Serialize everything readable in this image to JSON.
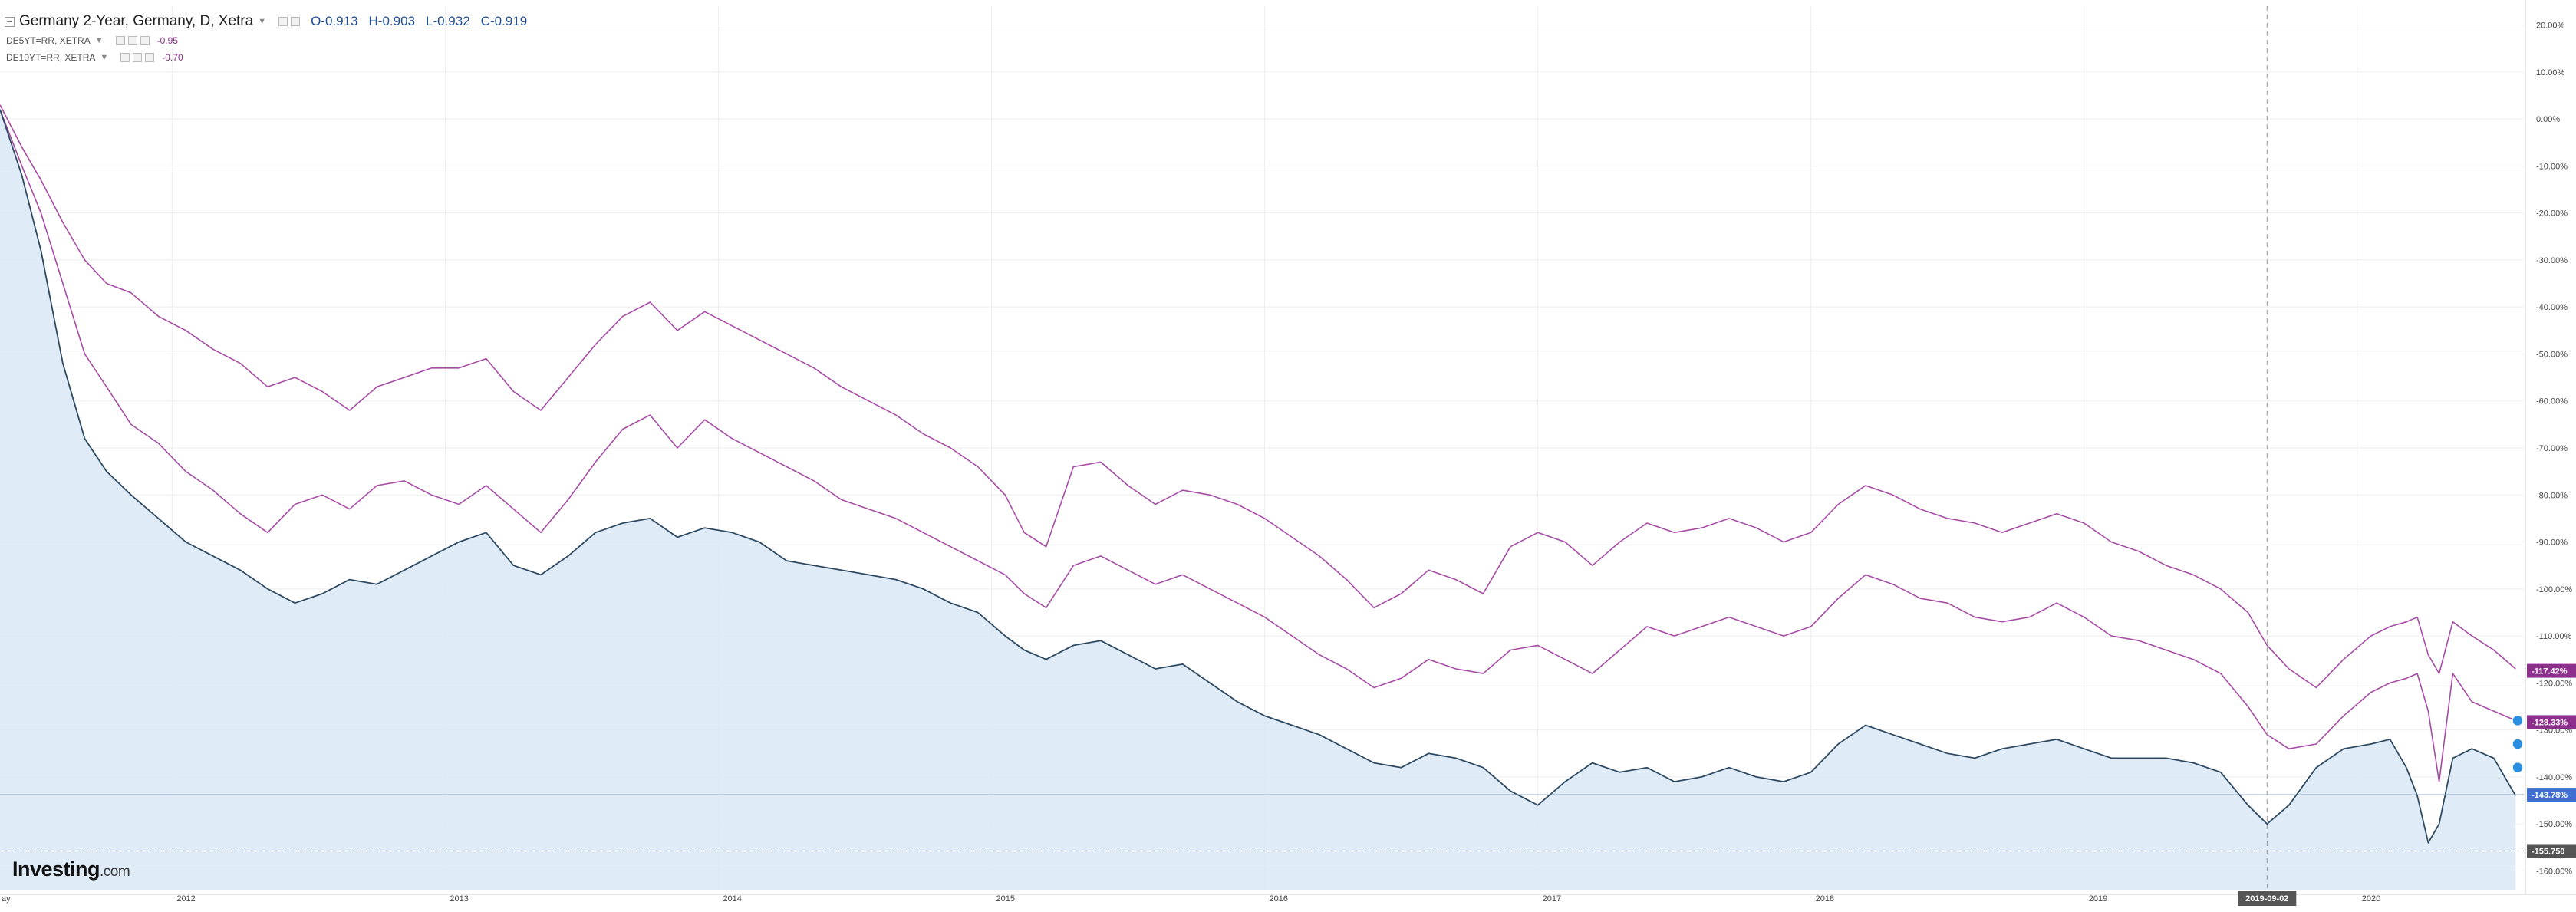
{
  "legend": {
    "main": {
      "title": "Germany 2-Year, Germany, D, Xetra",
      "open": "O-0.913",
      "high": "H-0.903",
      "low": "L-0.932",
      "close": "C-0.919"
    },
    "studies": [
      {
        "label": "DE5YT=RR, XETRA",
        "value": "-0.95"
      },
      {
        "label": "DE10YT=RR, XETRA",
        "value": "-0.70"
      }
    ]
  },
  "branding": {
    "name": "Investing",
    "suffix": ".com"
  },
  "colors": {
    "main_line": "#2e4a62",
    "main_fill": "#dbe8f7",
    "compare_line": "#a64ca6",
    "compare_badge": "#8e2f8e",
    "last_badge": "#3d6ed0",
    "crosshair_badge": "#555555",
    "grid": "#eeeeee"
  },
  "chart_data": {
    "type": "line",
    "title": "Germany 2-Year, Germany, D, Xetra",
    "x_tick_labels": [
      "ay",
      "2012",
      "2013",
      "2014",
      "2015",
      "2016",
      "2017",
      "2018",
      "2019",
      "2020"
    ],
    "y_tick_labels": [
      "20.00%",
      "10.00%",
      "0.00%",
      "-10.00%",
      "-20.00%",
      "-30.00%",
      "-40.00%",
      "-50.00%",
      "-60.00%",
      "-70.00%",
      "-80.00%",
      "-90.00%",
      "-100.00%",
      "-110.00%",
      "-120.00%",
      "-130.00%",
      "-140.00%",
      "-150.00%",
      "-160.00%"
    ],
    "y_ticks": [
      20,
      10,
      0,
      -10,
      -20,
      -30,
      -40,
      -50,
      -60,
      -70,
      -80,
      -90,
      -100,
      -110,
      -120,
      -130,
      -140,
      -150,
      -160
    ],
    "ylim": [
      -164,
      24
    ],
    "xlim": [
      2011.37,
      2020.61
    ],
    "axis_scale": "percent change",
    "grid": true,
    "legend_position": "top-left",
    "crosshair": {
      "x_label": "2019-09-02",
      "x": 2019.67,
      "y_label": "-155.750",
      "y": -155.75
    },
    "value_badges": [
      {
        "text": "-117.42%",
        "value": -117.42,
        "series": "DE10YT=RR"
      },
      {
        "text": "-128.33%",
        "value": -128.33,
        "series": "DE5YT=RR"
      },
      {
        "text": "-143.78%",
        "value": -143.78,
        "series": "Germany 2-Year"
      }
    ],
    "series": [
      {
        "name": "DE10YT=RR, XETRA",
        "role": "compare",
        "x": [
          2011.37,
          2011.45,
          2011.52,
          2011.6,
          2011.68,
          2011.76,
          2011.85,
          2011.95,
          2012.05,
          2012.15,
          2012.25,
          2012.35,
          2012.45,
          2012.55,
          2012.65,
          2012.75,
          2012.85,
          2012.95,
          2013.05,
          2013.15,
          2013.25,
          2013.35,
          2013.45,
          2013.55,
          2013.65,
          2013.75,
          2013.85,
          2013.95,
          2014.05,
          2014.15,
          2014.25,
          2014.35,
          2014.45,
          2014.55,
          2014.65,
          2014.75,
          2014.85,
          2014.95,
          2015.05,
          2015.12,
          2015.2,
          2015.3,
          2015.4,
          2015.5,
          2015.6,
          2015.7,
          2015.8,
          2015.9,
          2016.0,
          2016.1,
          2016.2,
          2016.3,
          2016.4,
          2016.5,
          2016.6,
          2016.7,
          2016.8,
          2016.9,
          2017.0,
          2017.1,
          2017.2,
          2017.3,
          2017.4,
          2017.5,
          2017.6,
          2017.7,
          2017.8,
          2017.9,
          2018.0,
          2018.1,
          2018.2,
          2018.3,
          2018.4,
          2018.5,
          2018.6,
          2018.7,
          2018.8,
          2018.9,
          2019.0,
          2019.1,
          2019.2,
          2019.3,
          2019.4,
          2019.5,
          2019.6,
          2019.67,
          2019.75,
          2019.85,
          2019.95,
          2020.05,
          2020.12,
          2020.18,
          2020.22,
          2020.26,
          2020.3,
          2020.35,
          2020.42,
          2020.5,
          2020.58
        ],
        "values": [
          3,
          -6,
          -13,
          -22,
          -30,
          -35,
          -37,
          -42,
          -45,
          -49,
          -52,
          -57,
          -55,
          -58,
          -62,
          -57,
          -55,
          -53,
          -53,
          -51,
          -58,
          -62,
          -55,
          -48,
          -42,
          -39,
          -45,
          -41,
          -44,
          -47,
          -50,
          -53,
          -57,
          -60,
          -63,
          -67,
          -70,
          -74,
          -80,
          -88,
          -91,
          -74,
          -73,
          -78,
          -82,
          -79,
          -80,
          -82,
          -85,
          -89,
          -93,
          -98,
          -104,
          -101,
          -96,
          -98,
          -101,
          -91,
          -88,
          -90,
          -95,
          -90,
          -86,
          -88,
          -87,
          -85,
          -87,
          -90,
          -88,
          -82,
          -78,
          -80,
          -83,
          -85,
          -86,
          -88,
          -86,
          -84,
          -86,
          -90,
          -92,
          -95,
          -97,
          -100,
          -105,
          -112,
          -117,
          -121,
          -115,
          -110,
          -108,
          -107,
          -106,
          -114,
          -118,
          -107,
          -110,
          -113,
          -117
        ]
      },
      {
        "name": "DE5YT=RR, XETRA",
        "role": "compare",
        "x": [
          2011.37,
          2011.45,
          2011.52,
          2011.6,
          2011.68,
          2011.76,
          2011.85,
          2011.95,
          2012.05,
          2012.15,
          2012.25,
          2012.35,
          2012.45,
          2012.55,
          2012.65,
          2012.75,
          2012.85,
          2012.95,
          2013.05,
          2013.15,
          2013.25,
          2013.35,
          2013.45,
          2013.55,
          2013.65,
          2013.75,
          2013.85,
          2013.95,
          2014.05,
          2014.15,
          2014.25,
          2014.35,
          2014.45,
          2014.55,
          2014.65,
          2014.75,
          2014.85,
          2014.95,
          2015.05,
          2015.12,
          2015.2,
          2015.3,
          2015.4,
          2015.5,
          2015.6,
          2015.7,
          2015.8,
          2015.9,
          2016.0,
          2016.1,
          2016.2,
          2016.3,
          2016.4,
          2016.5,
          2016.6,
          2016.7,
          2016.8,
          2016.9,
          2017.0,
          2017.1,
          2017.2,
          2017.3,
          2017.4,
          2017.5,
          2017.6,
          2017.7,
          2017.8,
          2017.9,
          2018.0,
          2018.1,
          2018.2,
          2018.3,
          2018.4,
          2018.5,
          2018.6,
          2018.7,
          2018.8,
          2018.9,
          2019.0,
          2019.1,
          2019.2,
          2019.3,
          2019.4,
          2019.5,
          2019.6,
          2019.67,
          2019.75,
          2019.85,
          2019.95,
          2020.05,
          2020.12,
          2020.18,
          2020.22,
          2020.26,
          2020.3,
          2020.35,
          2020.42,
          2020.5,
          2020.58
        ],
        "values": [
          2,
          -10,
          -20,
          -35,
          -50,
          -57,
          -65,
          -69,
          -75,
          -79,
          -84,
          -88,
          -82,
          -80,
          -83,
          -78,
          -77,
          -80,
          -82,
          -78,
          -83,
          -88,
          -81,
          -73,
          -66,
          -63,
          -70,
          -64,
          -68,
          -71,
          -74,
          -77,
          -81,
          -83,
          -85,
          -88,
          -91,
          -94,
          -97,
          -101,
          -104,
          -95,
          -93,
          -96,
          -99,
          -97,
          -100,
          -103,
          -106,
          -110,
          -114,
          -117,
          -121,
          -119,
          -115,
          -117,
          -118,
          -113,
          -112,
          -115,
          -118,
          -113,
          -108,
          -110,
          -108,
          -106,
          -108,
          -110,
          -108,
          -102,
          -97,
          -99,
          -102,
          -103,
          -106,
          -107,
          -106,
          -103,
          -106,
          -110,
          -111,
          -113,
          -115,
          -118,
          -125,
          -131,
          -134,
          -133,
          -127,
          -122,
          -120,
          -119,
          -118,
          -126,
          -141,
          -118,
          -124,
          -126,
          -128
        ]
      },
      {
        "name": "Germany 2-Year, Germany, D, Xetra",
        "role": "main",
        "x": [
          2011.37,
          2011.45,
          2011.52,
          2011.6,
          2011.68,
          2011.76,
          2011.85,
          2011.95,
          2012.05,
          2012.15,
          2012.25,
          2012.35,
          2012.45,
          2012.55,
          2012.65,
          2012.75,
          2012.85,
          2012.95,
          2013.05,
          2013.15,
          2013.25,
          2013.35,
          2013.45,
          2013.55,
          2013.65,
          2013.75,
          2013.85,
          2013.95,
          2014.05,
          2014.15,
          2014.25,
          2014.35,
          2014.45,
          2014.55,
          2014.65,
          2014.75,
          2014.85,
          2014.95,
          2015.05,
          2015.12,
          2015.2,
          2015.3,
          2015.4,
          2015.5,
          2015.6,
          2015.7,
          2015.8,
          2015.9,
          2016.0,
          2016.1,
          2016.2,
          2016.3,
          2016.4,
          2016.5,
          2016.6,
          2016.7,
          2016.8,
          2016.9,
          2017.0,
          2017.1,
          2017.2,
          2017.3,
          2017.4,
          2017.5,
          2017.6,
          2017.7,
          2017.8,
          2017.9,
          2018.0,
          2018.1,
          2018.2,
          2018.3,
          2018.4,
          2018.5,
          2018.6,
          2018.7,
          2018.8,
          2018.9,
          2019.0,
          2019.1,
          2019.2,
          2019.3,
          2019.4,
          2019.5,
          2019.6,
          2019.67,
          2019.75,
          2019.85,
          2019.95,
          2020.05,
          2020.12,
          2020.18,
          2020.22,
          2020.26,
          2020.3,
          2020.35,
          2020.42,
          2020.5,
          2020.58
        ],
        "values": [
          2,
          -12,
          -28,
          -52,
          -68,
          -75,
          -80,
          -85,
          -90,
          -93,
          -96,
          -100,
          -103,
          -101,
          -98,
          -99,
          -96,
          -93,
          -90,
          -88,
          -95,
          -97,
          -93,
          -88,
          -86,
          -85,
          -89,
          -87,
          -88,
          -90,
          -94,
          -95,
          -96,
          -97,
          -98,
          -100,
          -103,
          -105,
          -110,
          -113,
          -115,
          -112,
          -111,
          -114,
          -117,
          -116,
          -120,
          -124,
          -127,
          -129,
          -131,
          -134,
          -137,
          -138,
          -135,
          -136,
          -138,
          -143,
          -146,
          -141,
          -137,
          -139,
          -138,
          -141,
          -140,
          -138,
          -140,
          -141,
          -139,
          -133,
          -129,
          -131,
          -133,
          -135,
          -136,
          -134,
          -133,
          -132,
          -134,
          -136,
          -136,
          -136,
          -137,
          -139,
          -146,
          -150,
          -146,
          -138,
          -134,
          -133,
          -132,
          -138,
          -144,
          -154,
          -150,
          -136,
          -134,
          -136,
          -144
        ]
      }
    ]
  }
}
